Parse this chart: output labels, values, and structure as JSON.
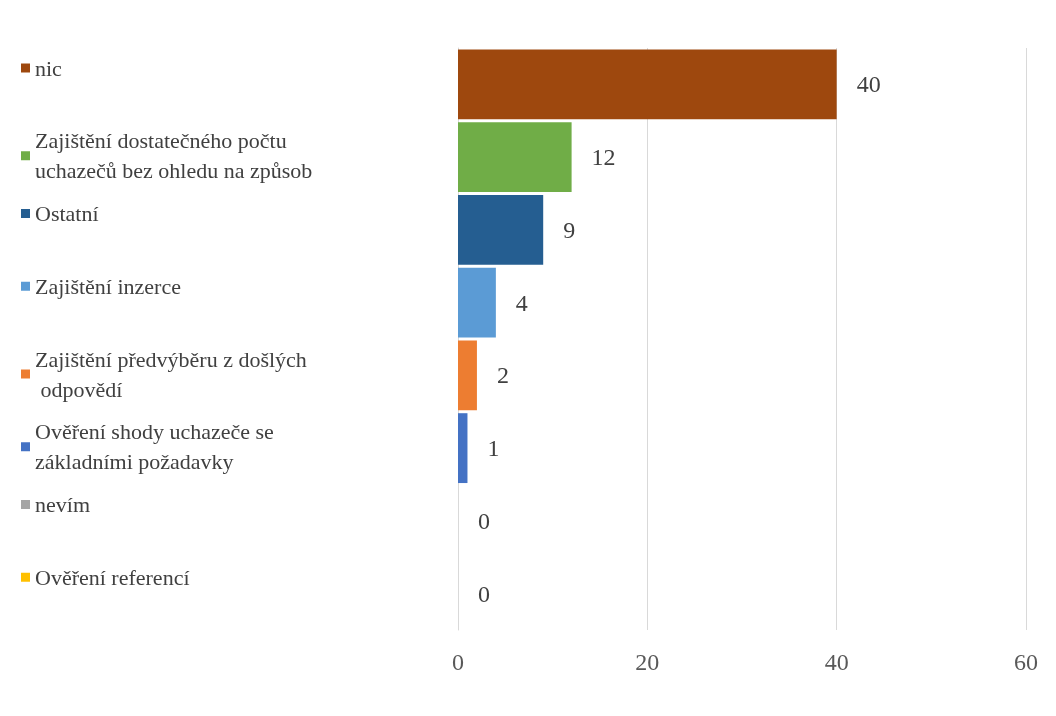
{
  "chart_data": {
    "type": "bar",
    "orientation": "horizontal",
    "stacked": true,
    "categories": [
      null,
      null,
      null,
      null,
      null,
      null,
      null,
      null
    ],
    "series": [
      {
        "name": "nic",
        "color": "#9e480e",
        "values": [
          40,
          null,
          null,
          null,
          null,
          null,
          null,
          null
        ]
      },
      {
        "name": "Zajištění dostatečného počtu uchazečů bez ohledu na způsob",
        "color": "#70ad47",
        "values": [
          null,
          12,
          null,
          null,
          null,
          null,
          null,
          null
        ]
      },
      {
        "name": "Ostatní",
        "color": "#255e91",
        "values": [
          null,
          null,
          9,
          null,
          null,
          null,
          null,
          null
        ]
      },
      {
        "name": "Zajištění inzerce",
        "color": "#5b9bd5",
        "values": [
          null,
          null,
          null,
          4,
          null,
          null,
          null,
          null
        ]
      },
      {
        "name": "Zajištění předvýběru z došlých odpovědí",
        "color": "#ed7d31",
        "values": [
          null,
          null,
          null,
          null,
          2,
          null,
          null,
          null
        ]
      },
      {
        "name": "Ověření shody uchazeče se základními požadavky",
        "color": "#4472c4",
        "values": [
          null,
          null,
          null,
          null,
          null,
          1,
          null,
          null
        ]
      },
      {
        "name": "nevím",
        "color": "#a5a5a5",
        "values": [
          null,
          null,
          null,
          null,
          null,
          null,
          0,
          null
        ]
      },
      {
        "name": "Ověření referencí",
        "color": "#ffc000",
        "values": [
          null,
          null,
          null,
          null,
          null,
          null,
          null,
          0
        ]
      }
    ],
    "xlim": [
      0,
      60
    ],
    "xticks": [
      0,
      20,
      40,
      60
    ],
    "grid": "x",
    "legend": "left",
    "data_labels": true
  }
}
